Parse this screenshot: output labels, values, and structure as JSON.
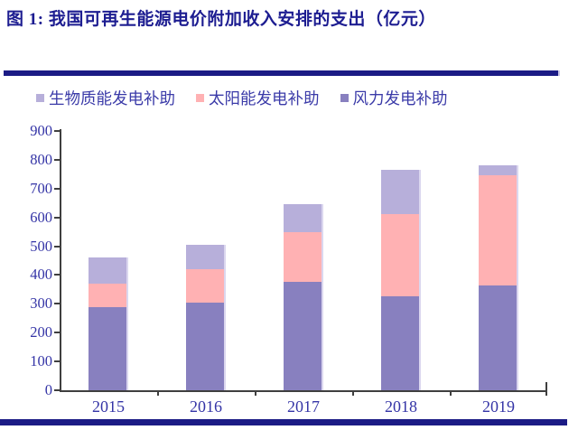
{
  "title": "图 1: 我国可再生能源电价附加收入安排的支出（亿元）",
  "colors": {
    "rule_navy": "#1b1b85",
    "title_text": "#1d1d91",
    "axis_text": "#3434a6",
    "legend_text": "#3a3aa8",
    "axis_line": "#3f3f3f",
    "wind": "#8880bf",
    "solar": "#ffb1b3",
    "biomass": "#b7afda"
  },
  "legend": [
    {
      "label": "生物质能发电补助",
      "color": "#b7afda"
    },
    {
      "label": "太阳能发电补助",
      "color": "#ffb1b3"
    },
    {
      "label": "风力发电补助",
      "color": "#8880bf"
    }
  ],
  "chart_data": {
    "type": "bar",
    "stacked": true,
    "title": "我国可再生能源电价附加收入安排的支出（亿元）",
    "categories": [
      "2015",
      "2016",
      "2017",
      "2018",
      "2019"
    ],
    "series": [
      {
        "name": "风力发电补助",
        "color": "#8880bf",
        "values": [
          290,
          305,
          375,
          325,
          365
        ]
      },
      {
        "name": "太阳能发电补助",
        "color": "#ffb1b3",
        "values": [
          80,
          115,
          175,
          285,
          380
        ]
      },
      {
        "name": "生物质能发电补助",
        "color": "#b7afda",
        "values": [
          90,
          85,
          95,
          155,
          35
        ]
      }
    ],
    "totals": [
      460,
      505,
      645,
      765,
      780
    ],
    "xlabel": "",
    "ylabel": "",
    "ylim": [
      0,
      900
    ],
    "ytick_step": 100,
    "grid": false,
    "legend_position": "top"
  }
}
